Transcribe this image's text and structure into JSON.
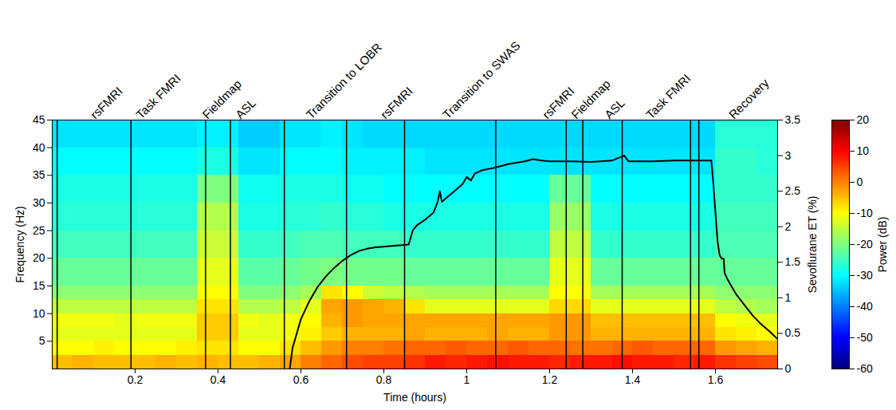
{
  "chart_data": {
    "type": "heatmap",
    "x_label": "Time (hours)",
    "y_label": "Frequency (Hz)",
    "y2_label": "Sevoflurane ET (%)",
    "xlim": [
      0,
      1.75
    ],
    "xticks": [
      0.2,
      0.4,
      0.6,
      0.8,
      1,
      1.2,
      1.4,
      1.6
    ],
    "ylim": [
      0,
      45
    ],
    "yticks": [
      5,
      10,
      15,
      20,
      25,
      30,
      35,
      40,
      45
    ],
    "y2lim": [
      0,
      3.5
    ],
    "y2ticks": [
      0,
      0.5,
      1,
      1.5,
      2,
      2.5,
      3,
      3.5
    ],
    "colorbar": {
      "range": [
        -60,
        20
      ],
      "ticks": [
        -60,
        -50,
        -40,
        -30,
        -20,
        -10,
        0,
        10,
        20
      ],
      "label": "Power (dB)"
    },
    "cells": {
      "time_edges": [
        0,
        0.05,
        0.1,
        0.15,
        0.2,
        0.25,
        0.3,
        0.35,
        0.4,
        0.45,
        0.5,
        0.55,
        0.6,
        0.65,
        0.7,
        0.75,
        0.8,
        0.85,
        0.9,
        0.95,
        1,
        1.05,
        1.1,
        1.15,
        1.2,
        1.25,
        1.3,
        1.35,
        1.4,
        1.45,
        1.5,
        1.55,
        1.6,
        1.65,
        1.7,
        1.75
      ],
      "freq_edges": [
        0,
        2.5,
        5,
        7.5,
        10,
        12.5,
        15,
        20,
        25,
        30,
        35,
        40,
        45
      ],
      "power": [
        [
          -5,
          -4,
          -5,
          -5,
          -5,
          -4,
          -5,
          -4,
          -5,
          -5,
          -4,
          -3,
          0,
          2,
          4,
          5,
          5,
          6,
          8,
          7,
          8,
          9,
          8,
          8,
          7,
          8,
          8,
          9,
          8,
          8,
          7,
          8,
          6,
          5,
          4
        ],
        [
          -10,
          -10,
          -9,
          -10,
          -10,
          -10,
          -9,
          -8,
          -8,
          -10,
          -10,
          -8,
          -5,
          -2,
          0,
          0,
          1,
          2,
          2,
          3,
          2,
          2,
          3,
          2,
          2,
          1,
          1,
          2,
          3,
          2,
          2,
          2,
          -2,
          -3,
          -4
        ],
        [
          -12,
          -12,
          -12,
          -12,
          -12,
          -12,
          -12,
          -6,
          -6,
          -12,
          -12,
          -11,
          -9,
          -6,
          -4,
          -4,
          -4,
          -3,
          -4,
          -4,
          -4,
          -3,
          -4,
          -4,
          -2,
          -2,
          -4,
          -4,
          -4,
          -4,
          -4,
          -4,
          -8,
          -9,
          -10
        ],
        [
          -11,
          -11,
          -11,
          -12,
          -11,
          -11,
          -11,
          -6,
          -6,
          -11,
          -12,
          -11,
          -10,
          -4,
          -2,
          -3,
          -3,
          -3,
          -3,
          -3,
          -3,
          -3,
          -3,
          -3,
          -2,
          -2,
          -5,
          -5,
          -5,
          -5,
          -5,
          -5,
          -10,
          -11,
          -12
        ],
        [
          -15,
          -15,
          -15,
          -15,
          -15,
          -15,
          -15,
          -8,
          -8,
          -16,
          -16,
          -15,
          -12,
          -3,
          -2,
          -3,
          -4,
          -8,
          -12,
          -12,
          -12,
          -12,
          -12,
          -12,
          -7,
          -7,
          -12,
          -12,
          -12,
          -12,
          -12,
          -12,
          -15,
          -16,
          -17
        ],
        [
          -19,
          -19,
          -19,
          -19,
          -19,
          -19,
          -19,
          -10,
          -10,
          -20,
          -20,
          -19,
          -17,
          -8,
          -10,
          -14,
          -15,
          -16,
          -17,
          -17,
          -17,
          -17,
          -17,
          -17,
          -10,
          -10,
          -17,
          -17,
          -17,
          -17,
          -17,
          -17,
          -19,
          -19,
          -19
        ],
        [
          -22,
          -22,
          -22,
          -22,
          -22,
          -22,
          -22,
          -12,
          -12,
          -23,
          -23,
          -22,
          -21,
          -20,
          -21,
          -21,
          -21,
          -22,
          -22,
          -22,
          -22,
          -22,
          -22,
          -22,
          -12,
          -12,
          -22,
          -22,
          -22,
          -22,
          -22,
          -22,
          -22,
          -22,
          -22
        ],
        [
          -25,
          -25,
          -25,
          -25,
          -25,
          -25,
          -25,
          -14,
          -14,
          -26,
          -26,
          -25,
          -24,
          -24,
          -25,
          -25,
          -25,
          -26,
          -26,
          -26,
          -26,
          -26,
          -26,
          -26,
          -15,
          -15,
          -26,
          -26,
          -26,
          -26,
          -26,
          -26,
          -24,
          -24,
          -24
        ],
        [
          -27,
          -27,
          -27,
          -27,
          -27,
          -27,
          -27,
          -16,
          -16,
          -28,
          -28,
          -27,
          -27,
          -26,
          -27,
          -27,
          -28,
          -28,
          -28,
          -28,
          -28,
          -28,
          -28,
          -28,
          -18,
          -18,
          -28,
          -28,
          -28,
          -28,
          -28,
          -28,
          -25,
          -25,
          -25
        ],
        [
          -28,
          -28,
          -28,
          -28,
          -28,
          -28,
          -28,
          -20,
          -20,
          -29,
          -29,
          -28,
          -28,
          -28,
          -29,
          -29,
          -30,
          -30,
          -30,
          -30,
          -30,
          -30,
          -30,
          -30,
          -22,
          -22,
          -30,
          -30,
          -30,
          -30,
          -30,
          -30,
          -26,
          -26,
          -26
        ],
        [
          -30,
          -30,
          -30,
          -30,
          -30,
          -30,
          -30,
          -28,
          -28,
          -32,
          -32,
          -30,
          -30,
          -30,
          -31,
          -31,
          -31,
          -31,
          -32,
          -32,
          -32,
          -32,
          -32,
          -32,
          -32,
          -32,
          -32,
          -32,
          -32,
          -32,
          -32,
          -32,
          -26,
          -26,
          -27
        ],
        [
          -32,
          -32,
          -32,
          -32,
          -32,
          -32,
          -32,
          -31,
          -31,
          -34,
          -34,
          -32,
          -32,
          -31,
          -32,
          -33,
          -33,
          -33,
          -33,
          -33,
          -33,
          -33,
          -33,
          -33,
          -33,
          -33,
          -33,
          -33,
          -33,
          -33,
          -33,
          -33,
          -27,
          -27,
          -27
        ]
      ]
    },
    "event_lines": [
      0.012,
      0.19,
      0.37,
      0.43,
      0.56,
      0.71,
      0.85,
      1.07,
      1.24,
      1.28,
      1.375,
      1.54,
      1.56
    ],
    "annotations": [
      {
        "text": "rsFMRI",
        "x": 0.09
      },
      {
        "text": "Task FMRI",
        "x": 0.2
      },
      {
        "text": "Fieldmap",
        "x": 0.36
      },
      {
        "text": "ASL",
        "x": 0.44
      },
      {
        "text": "Transition to LOBR",
        "x": 0.61
      },
      {
        "text": "rsFMRI",
        "x": 0.79
      },
      {
        "text": "Transition to SWAS",
        "x": 0.94
      },
      {
        "text": "rsFMRI",
        "x": 1.18
      },
      {
        "text": "Fieldmap",
        "x": 1.25
      },
      {
        "text": "ASL",
        "x": 1.33
      },
      {
        "text": "Task FMRI",
        "x": 1.43
      },
      {
        "text": "Recovery",
        "x": 1.63
      }
    ],
    "series": [
      {
        "type": "line",
        "axis": "y2",
        "color": "#000000",
        "x": [
          0.573,
          0.58,
          0.59,
          0.6,
          0.62,
          0.64,
          0.66,
          0.68,
          0.7,
          0.72,
          0.74,
          0.76,
          0.78,
          0.8,
          0.82,
          0.84,
          0.86,
          0.865,
          0.87,
          0.88,
          0.9,
          0.92,
          0.93,
          0.935,
          0.94,
          0.95,
          0.97,
          0.99,
          1.0,
          1.01,
          1.02,
          1.04,
          1.06,
          1.08,
          1.1,
          1.12,
          1.14,
          1.16,
          1.18,
          1.2,
          1.25,
          1.3,
          1.35,
          1.38,
          1.39,
          1.45,
          1.5,
          1.55,
          1.59,
          1.595,
          1.6,
          1.605,
          1.61,
          1.615,
          1.62,
          1.622,
          1.63,
          1.65,
          1.67,
          1.69,
          1.71,
          1.73,
          1.75
        ],
        "values": [
          0,
          0.3,
          0.5,
          0.7,
          0.95,
          1.15,
          1.3,
          1.42,
          1.52,
          1.6,
          1.66,
          1.69,
          1.71,
          1.72,
          1.73,
          1.74,
          1.75,
          1.85,
          1.95,
          2.02,
          2.1,
          2.2,
          2.35,
          2.5,
          2.35,
          2.4,
          2.5,
          2.6,
          2.7,
          2.65,
          2.75,
          2.8,
          2.82,
          2.85,
          2.88,
          2.9,
          2.92,
          2.95,
          2.93,
          2.92,
          2.92,
          2.91,
          2.93,
          3.0,
          2.92,
          2.92,
          2.93,
          2.93,
          2.93,
          2.6,
          2.2,
          1.8,
          1.6,
          1.55,
          1.55,
          1.35,
          1.25,
          1.05,
          0.9,
          0.75,
          0.63,
          0.53,
          0.42
        ]
      }
    ]
  }
}
